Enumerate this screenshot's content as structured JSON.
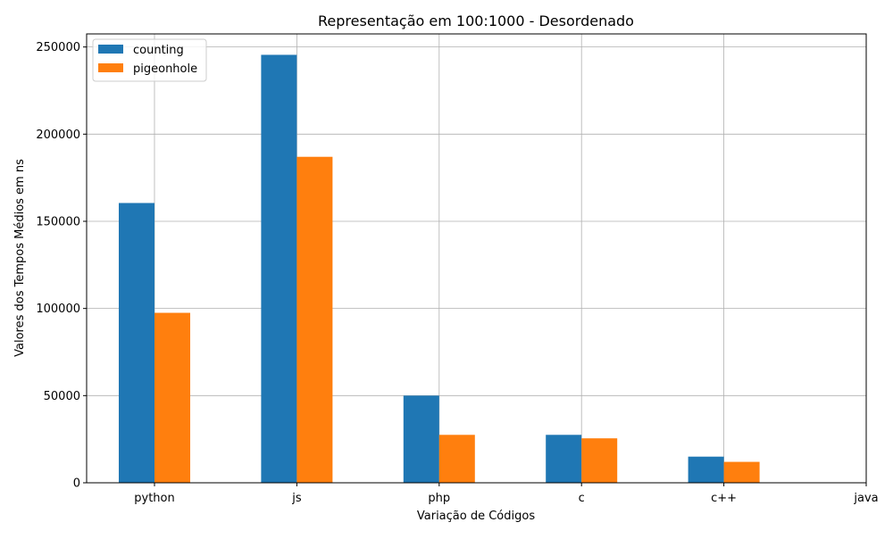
{
  "chart_data": {
    "type": "bar",
    "title": "Representação em 100:1000 - Desordenado",
    "xlabel": "Variação de Códigos",
    "ylabel": "Valores dos Tempos Médios em ns",
    "categories": [
      "python",
      "js",
      "php",
      "c",
      "c++",
      "java"
    ],
    "series": [
      {
        "name": "counting",
        "color": "#1f77b4",
        "values": [
          160500,
          245500,
          50000,
          27500,
          15000,
          0
        ]
      },
      {
        "name": "pigeonhole",
        "color": "#ff7f0e",
        "values": [
          97500,
          187000,
          27500,
          25500,
          12000,
          0
        ]
      }
    ],
    "ylim": [
      0,
      257500
    ],
    "yticks": [
      0,
      50000,
      100000,
      150000,
      200000,
      250000
    ],
    "grid": true,
    "legend_position": "top-left"
  }
}
